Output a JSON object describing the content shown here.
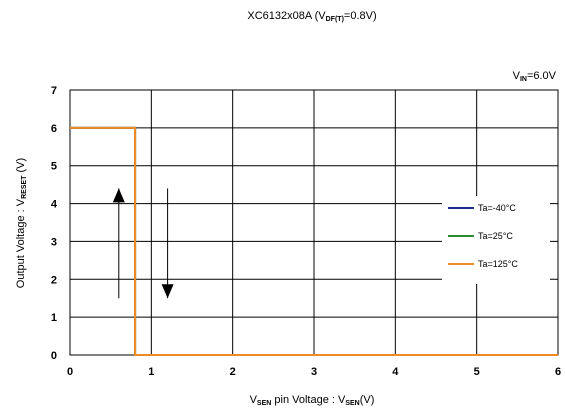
{
  "chart_data": {
    "type": "line",
    "title": {
      "main": "XC6132x08A  (V",
      "sub": "DF(T)",
      "tail": "=0.8V)"
    },
    "condition": {
      "main": "V",
      "sub": "IN",
      "tail": "=6.0V"
    },
    "xlabel": {
      "a": "V",
      "a_sub": "SEN",
      "b": " pin Voltage : V",
      "b_sub": "SEN",
      "c": "(V)"
    },
    "ylabel": {
      "a": "Output Voltage : V",
      "a_sub": "RESET",
      "b": "  (V)"
    },
    "xlim": [
      0,
      6
    ],
    "ylim": [
      0,
      7
    ],
    "xticks": [
      "0",
      "1",
      "2",
      "3",
      "4",
      "5",
      "6"
    ],
    "yticks": [
      "0",
      "1",
      "2",
      "3",
      "4",
      "5",
      "6",
      "7"
    ],
    "grid": true,
    "legend_position": "right",
    "series": [
      {
        "name": "Ta=-40°C",
        "color": "#1f2a8a",
        "x": [
          0,
          0.8,
          0.8,
          6
        ],
        "y": [
          6.0,
          6.0,
          0,
          0
        ]
      },
      {
        "name": "Ta=25°C",
        "color": "#2e8b2e",
        "x": [
          0,
          0.8,
          0.8,
          6
        ],
        "y": [
          6.0,
          6.0,
          0,
          0
        ]
      },
      {
        "name": "Ta=125°C",
        "color": "#f08a24",
        "x": [
          0,
          0.8,
          0.8,
          6
        ],
        "y": [
          6.0,
          6.0,
          0,
          0
        ]
      }
    ],
    "annotations": [
      {
        "type": "arrow",
        "direction": "up",
        "x": 0.6,
        "y_from": 1.5,
        "y_to": 4.4
      },
      {
        "type": "arrow",
        "direction": "down",
        "x": 1.2,
        "y_from": 4.4,
        "y_to": 1.5
      }
    ]
  }
}
